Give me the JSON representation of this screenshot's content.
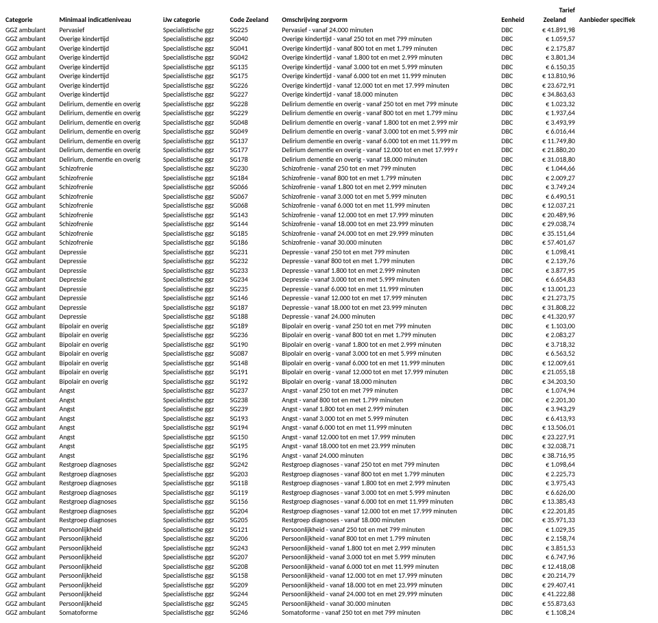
{
  "headers": {
    "categorie": "Categorie",
    "minimaal": "Minimaal indicatieniveau",
    "ijw": "iJw categorie",
    "code": "Code Zeeland",
    "omschrijving": "Omschrijving zorgvorm",
    "eenheid": "Eenheid",
    "tarief_top": "Tarief",
    "tarief": "Zeeland",
    "aanbieder": "Aanbieder specifiek"
  },
  "rows": [
    [
      "GGZ ambulant",
      "Pervasief",
      "Specialistische ggz",
      "SG225",
      "Pervasief - vanaf 24.000 minuten",
      "DBC",
      "€ 41.891,98",
      ""
    ],
    [
      "GGZ ambulant",
      "Overige kindertijd",
      "Specialistische ggz",
      "SG040",
      "Overige kindertijd - vanaf 250 tot en met 799 minuten",
      "DBC",
      "€ 1.059,57",
      ""
    ],
    [
      "GGZ ambulant",
      "Overige kindertijd",
      "Specialistische ggz",
      "SG041",
      "Overige kindertijd - vanaf 800 tot en met 1.799 minuten",
      "DBC",
      "€ 2.175,87",
      ""
    ],
    [
      "GGZ ambulant",
      "Overige kindertijd",
      "Specialistische ggz",
      "SG042",
      "Overige kindertijd - vanaf 1.800 tot en met 2.999 minuten",
      "DBC",
      "€ 3.801,34",
      ""
    ],
    [
      "GGZ ambulant",
      "Overige kindertijd",
      "Specialistische ggz",
      "SG135",
      "Overige kindertijd - vanaf 3.000 tot en met 5.999 minuten",
      "DBC",
      "€ 6.150,35",
      ""
    ],
    [
      "GGZ ambulant",
      "Overige kindertijd",
      "Specialistische ggz",
      "SG175",
      "Overige kindertijd - vanaf 6.000 tot en met 11.999 minuten",
      "DBC",
      "€ 13.810,96",
      ""
    ],
    [
      "GGZ ambulant",
      "Overige kindertijd",
      "Specialistische ggz",
      "SG226",
      "Overige kindertijd - vanaf 12.000 tot en met 17.999 minuten",
      "DBC",
      "€ 23.672,91",
      ""
    ],
    [
      "GGZ ambulant",
      "Overige kindertijd",
      "Specialistische ggz",
      "SG227",
      "Overige kindertijd - vanaf 18.000 minuten",
      "DBC",
      "€ 34.863,63",
      ""
    ],
    [
      "GGZ ambulant",
      "Delirium, dementie en overig",
      "Specialistische ggz",
      "SG228",
      "Delirium dementie en overig - vanaf 250 tot en met 799 minute",
      "DBC",
      "€ 1.023,32",
      ""
    ],
    [
      "GGZ ambulant",
      "Delirium, dementie en overig",
      "Specialistische ggz",
      "SG229",
      "Delirium dementie en overig - vanaf 800 tot en met 1.799 minu",
      "DBC",
      "€ 1.937,64",
      ""
    ],
    [
      "GGZ ambulant",
      "Delirium, dementie en overig",
      "Specialistische ggz",
      "SG048",
      "Delirium dementie en overig - vanaf 1.800 tot en met 2.999 mir",
      "DBC",
      "€ 3.493,99",
      ""
    ],
    [
      "GGZ ambulant",
      "Delirium, dementie en overig",
      "Specialistische ggz",
      "SG049",
      "Delirium dementie en overig - vanaf 3.000 tot en met 5.999 mir",
      "DBC",
      "€ 6.016,44",
      ""
    ],
    [
      "GGZ ambulant",
      "Delirium, dementie en overig",
      "Specialistische ggz",
      "SG137",
      "Delirium dementie en overig - vanaf 6.000 tot en met 11.999 m",
      "DBC",
      "€ 11.749,80",
      ""
    ],
    [
      "GGZ ambulant",
      "Delirium, dementie en overig",
      "Specialistische ggz",
      "SG177",
      "Delirium dementie en overig - vanaf 12.000 tot en met 17.999 r",
      "DBC",
      "€ 21.880,20",
      ""
    ],
    [
      "GGZ ambulant",
      "Delirium, dementie en overig",
      "Specialistische ggz",
      "SG178",
      "Delirium dementie en overig - vanaf 18.000 minuten",
      "DBC",
      "€ 31.018,80",
      ""
    ],
    [
      "GGZ ambulant",
      "Schizofrenie",
      "Specialistische ggz",
      "SG230",
      "Schizofrenie - vanaf 250 tot en met 799 minuten",
      "DBC",
      "€ 1.044,66",
      ""
    ],
    [
      "GGZ ambulant",
      "Schizofrenie",
      "Specialistische ggz",
      "SG184",
      "Schizofrenie - vanaf 800 tot en met 1.799 minuten",
      "DBC",
      "€ 2.009,27",
      ""
    ],
    [
      "GGZ ambulant",
      "Schizofrenie",
      "Specialistische ggz",
      "SG066",
      "Schizofrenie - vanaf 1.800 tot en met 2.999 minuten",
      "DBC",
      "€ 3.749,24",
      ""
    ],
    [
      "GGZ ambulant",
      "Schizofrenie",
      "Specialistische ggz",
      "SG067",
      "Schizofrenie - vanaf 3.000 tot en met 5.999 minuten",
      "DBC",
      "€ 6.490,51",
      ""
    ],
    [
      "GGZ ambulant",
      "Schizofrenie",
      "Specialistische ggz",
      "SG068",
      "Schizofrenie - vanaf 6.000 tot en met 11.999 minuten",
      "DBC",
      "€ 12.037,21",
      ""
    ],
    [
      "GGZ ambulant",
      "Schizofrenie",
      "Specialistische ggz",
      "SG143",
      "Schizofrenie - vanaf 12.000 tot en met 17.999 minuten",
      "DBC",
      "€ 20.489,96",
      ""
    ],
    [
      "GGZ ambulant",
      "Schizofrenie",
      "Specialistische ggz",
      "SG144",
      "Schizofrenie - vanaf 18.000 tot en met 23.999 minuten",
      "DBC",
      "€ 29.038,74",
      ""
    ],
    [
      "GGZ ambulant",
      "Schizofrenie",
      "Specialistische ggz",
      "SG185",
      "Schizofrenie - vanaf 24.000 tot en met 29.999 minuten",
      "DBC",
      "€ 35.151,64",
      ""
    ],
    [
      "GGZ ambulant",
      "Schizofrenie",
      "Specialistische ggz",
      "SG186",
      "Schizofrenie - vanaf 30.000 minuten",
      "DBC",
      "€ 57.401,67",
      ""
    ],
    [
      "GGZ ambulant",
      "Depressie",
      "Specialistische ggz",
      "SG231",
      "Depressie - vanaf 250 tot en met 799 minuten",
      "DBC",
      "€ 1.098,41",
      ""
    ],
    [
      "GGZ ambulant",
      "Depressie",
      "Specialistische ggz",
      "SG232",
      "Depressie - vanaf 800 tot en met 1.799 minuten",
      "DBC",
      "€ 2.139,76",
      ""
    ],
    [
      "GGZ ambulant",
      "Depressie",
      "Specialistische ggz",
      "SG233",
      "Depressie - vanaf 1.800 tot en met 2.999 minuten",
      "DBC",
      "€ 3.877,95",
      ""
    ],
    [
      "GGZ ambulant",
      "Depressie",
      "Specialistische ggz",
      "SG234",
      "Depressie - vanaf 3.000 tot en met 5.999 minuten",
      "DBC",
      "€ 6.654,83",
      ""
    ],
    [
      "GGZ ambulant",
      "Depressie",
      "Specialistische ggz",
      "SG235",
      "Depressie - vanaf 6.000 tot en met 11.999 minuten",
      "DBC",
      "€ 13.001,23",
      ""
    ],
    [
      "GGZ ambulant",
      "Depressie",
      "Specialistische ggz",
      "SG146",
      "Depressie - vanaf 12.000 tot en met 17.999 minuten",
      "DBC",
      "€ 21.273,75",
      ""
    ],
    [
      "GGZ ambulant",
      "Depressie",
      "Specialistische ggz",
      "SG187",
      "Depressie - vanaf 18.000 tot en met 23.999 minuten",
      "DBC",
      "€ 31.808,22",
      ""
    ],
    [
      "GGZ ambulant",
      "Depressie",
      "Specialistische ggz",
      "SG188",
      "Depressie - vanaf 24.000 minuten",
      "DBC",
      "€ 41.320,97",
      ""
    ],
    [
      "GGZ ambulant",
      "Bipolair en overig",
      "Specialistische ggz",
      "SG189",
      "Bipolair en overig - vanaf 250 tot en met 799 minuten",
      "DBC",
      "€ 1.103,00",
      ""
    ],
    [
      "GGZ ambulant",
      "Bipolair en overig",
      "Specialistische ggz",
      "SG236",
      "Bipolair en overig - vanaf 800 tot en met 1.799 minuten",
      "DBC",
      "€ 2.083,27",
      ""
    ],
    [
      "GGZ ambulant",
      "Bipolair en overig",
      "Specialistische ggz",
      "SG190",
      "Bipolair en overig - vanaf 1.800 tot en met 2.999 minuten",
      "DBC",
      "€ 3.718,32",
      ""
    ],
    [
      "GGZ ambulant",
      "Bipolair en overig",
      "Specialistische ggz",
      "SG087",
      "Bipolair en overig - vanaf 3.000 tot en met 5.999 minuten",
      "DBC",
      "€ 6.563,52",
      ""
    ],
    [
      "GGZ ambulant",
      "Bipolair en overig",
      "Specialistische ggz",
      "SG148",
      "Bipolair en overig - vanaf 6.000 tot en met 11.999 minuten",
      "DBC",
      "€ 12.009,61",
      ""
    ],
    [
      "GGZ ambulant",
      "Bipolair en overig",
      "Specialistische ggz",
      "SG191",
      "Bipolair en overig - vanaf 12.000 tot en met 17.999 minuten",
      "DBC",
      "€ 21.055,18",
      ""
    ],
    [
      "GGZ ambulant",
      "Bipolair en overig",
      "Specialistische ggz",
      "SG192",
      "Bipolair en overig - vanaf 18.000 minuten",
      "DBC",
      "€ 34.203,50",
      ""
    ],
    [
      "GGZ ambulant",
      "Angst",
      "Specialistische ggz",
      "SG237",
      "Angst - vanaf 250 tot en met 799 minuten",
      "DBC",
      "€ 1.074,94",
      ""
    ],
    [
      "GGZ ambulant",
      "Angst",
      "Specialistische ggz",
      "SG238",
      "Angst - vanaf 800 tot en met 1.799 minuten",
      "DBC",
      "€ 2.201,30",
      ""
    ],
    [
      "GGZ ambulant",
      "Angst",
      "Specialistische ggz",
      "SG239",
      "Angst - vanaf 1.800 tot en met 2.999 minuten",
      "DBC",
      "€ 3.943,29",
      ""
    ],
    [
      "GGZ ambulant",
      "Angst",
      "Specialistische ggz",
      "SG193",
      "Angst - vanaf 3.000 tot en met 5.999 minuten",
      "DBC",
      "€ 6.413,93",
      ""
    ],
    [
      "GGZ ambulant",
      "Angst",
      "Specialistische ggz",
      "SG194",
      "Angst - vanaf 6.000 tot en met 11.999 minuten",
      "DBC",
      "€ 13.506,01",
      ""
    ],
    [
      "GGZ ambulant",
      "Angst",
      "Specialistische ggz",
      "SG150",
      "Angst - vanaf 12.000 tot en met 17.999 minuten",
      "DBC",
      "€ 23.227,91",
      ""
    ],
    [
      "GGZ ambulant",
      "Angst",
      "Specialistische ggz",
      "SG195",
      "Angst - vanaf 18.000 tot en met 23.999 minuten",
      "DBC",
      "€ 32.038,71",
      ""
    ],
    [
      "GGZ ambulant",
      "Angst",
      "Specialistische ggz",
      "SG196",
      "Angst - vanaf 24.000 minuten",
      "DBC",
      "€ 38.716,95",
      ""
    ],
    [
      "GGZ ambulant",
      "Restgroep diagnoses",
      "Specialistische ggz",
      "SG242",
      "Restgroep diagnoses - vanaf 250 tot en met 799 minuten",
      "DBC",
      "€ 1.098,64",
      ""
    ],
    [
      "GGZ ambulant",
      "Restgroep diagnoses",
      "Specialistische ggz",
      "SG203",
      "Restgroep diagnoses - vanaf 800 tot en met 1.799 minuten",
      "DBC",
      "€ 2.225,73",
      ""
    ],
    [
      "GGZ ambulant",
      "Restgroep diagnoses",
      "Specialistische ggz",
      "SG118",
      "Restgroep diagnoses - vanaf 1.800 tot en met 2.999 minuten",
      "DBC",
      "€ 3.975,43",
      ""
    ],
    [
      "GGZ ambulant",
      "Restgroep diagnoses",
      "Specialistische ggz",
      "SG119",
      "Restgroep diagnoses - vanaf 3.000 tot en met 5.999 minuten",
      "DBC",
      "€ 6.626,00",
      ""
    ],
    [
      "GGZ ambulant",
      "Restgroep diagnoses",
      "Specialistische ggz",
      "SG156",
      "Restgroep diagnoses - vanaf 6.000 tot en met 11.999 minuten",
      "DBC",
      "€ 13.385,43",
      ""
    ],
    [
      "GGZ ambulant",
      "Restgroep diagnoses",
      "Specialistische ggz",
      "SG204",
      "Restgroep diagnoses - vanaf 12.000 tot en met 17.999 minuten",
      "DBC",
      "€ 22.201,85",
      ""
    ],
    [
      "GGZ ambulant",
      "Restgroep diagnoses",
      "Specialistische ggz",
      "SG205",
      "Restgroep diagnoses - vanaf 18.000 minuten",
      "DBC",
      "€ 35.971,33",
      ""
    ],
    [
      "GGZ ambulant",
      "Persoonlijkheid",
      "Specialistische ggz",
      "SG121",
      "Persoonlijkheid - vanaf 250 tot en met 799 minuten",
      "DBC",
      "€ 1.029,35",
      ""
    ],
    [
      "GGZ ambulant",
      "Persoonlijkheid",
      "Specialistische ggz",
      "SG206",
      "Persoonlijkheid - vanaf 800 tot en met 1.799 minuten",
      "DBC",
      "€ 2.158,74",
      ""
    ],
    [
      "GGZ ambulant",
      "Persoonlijkheid",
      "Specialistische ggz",
      "SG243",
      "Persoonlijkheid - vanaf 1.800 tot en met 2.999 minuten",
      "DBC",
      "€ 3.851,53",
      ""
    ],
    [
      "GGZ ambulant",
      "Persoonlijkheid",
      "Specialistische ggz",
      "SG207",
      "Persoonlijkheid - vanaf 3.000 tot en met 5.999 minuten",
      "DBC",
      "€ 6.747,96",
      ""
    ],
    [
      "GGZ ambulant",
      "Persoonlijkheid",
      "Specialistische ggz",
      "SG208",
      "Persoonlijkheid - vanaf 6.000 tot en met 11.999 minuten",
      "DBC",
      "€ 12.418,08",
      ""
    ],
    [
      "GGZ ambulant",
      "Persoonlijkheid",
      "Specialistische ggz",
      "SG158",
      "Persoonlijkheid - vanaf 12.000 tot en met 17.999 minuten",
      "DBC",
      "€ 20.214,79",
      ""
    ],
    [
      "GGZ ambulant",
      "Persoonlijkheid",
      "Specialistische ggz",
      "SG209",
      "Persoonlijkheid - vanaf 18.000 tot en met 23.999 minuten",
      "DBC",
      "€ 29.407,41",
      ""
    ],
    [
      "GGZ ambulant",
      "Persoonlijkheid",
      "Specialistische ggz",
      "SG244",
      "Persoonlijkheid - vanaf 24.000 tot en met 29.999 minuten",
      "DBC",
      "€ 41.222,88",
      ""
    ],
    [
      "GGZ ambulant",
      "Persoonlijkheid",
      "Specialistische ggz",
      "SG245",
      "Persoonlijkheid - vanaf 30.000 minuten",
      "DBC",
      "€ 55.873,63",
      ""
    ],
    [
      "GGZ ambulant",
      "Somatoforme",
      "Specialistische ggz",
      "SG246",
      "Somatoforme - vanaf 250 tot en met 799 minuten",
      "DBC",
      "€ 1.108,24",
      ""
    ]
  ]
}
